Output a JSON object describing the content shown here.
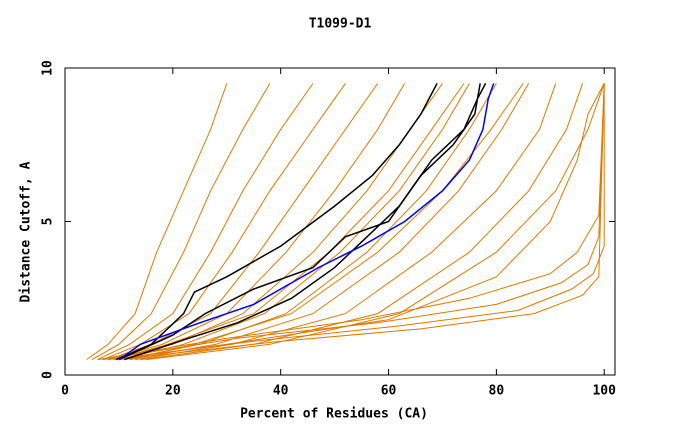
{
  "chart_data": {
    "type": "line",
    "title": "T1099-D1",
    "x_label": "Percent of Residues (CA)",
    "y_label": "Distance Cutoff, A",
    "xlim": [
      0,
      102
    ],
    "ylim": [
      0,
      10
    ],
    "xticks": [
      0,
      20,
      40,
      60,
      80,
      100
    ],
    "yticks": [
      0,
      5,
      10
    ],
    "series": [
      {
        "color": "#e07800",
        "x": [
          4,
          8,
          13,
          17,
          22,
          27,
          30
        ],
        "values": [
          0.5,
          1,
          2,
          4,
          6,
          8,
          9.5
        ]
      },
      {
        "color": "#e07800",
        "x": [
          5,
          10,
          16,
          22,
          27,
          33,
          38
        ],
        "values": [
          0.5,
          1,
          2,
          4,
          6,
          8,
          9.5
        ]
      },
      {
        "color": "#e07800",
        "x": [
          6,
          12,
          20,
          27,
          33,
          40,
          46
        ],
        "values": [
          0.5,
          1,
          2,
          4,
          6,
          8,
          9.5
        ]
      },
      {
        "color": "#e07800",
        "x": [
          7,
          14,
          23,
          31,
          38,
          46,
          52
        ],
        "values": [
          0.5,
          1,
          2,
          4,
          6,
          8,
          9.5
        ]
      },
      {
        "color": "#e07800",
        "x": [
          8,
          16,
          27,
          36,
          44,
          52,
          58
        ],
        "values": [
          0.5,
          1,
          2,
          4,
          6,
          8,
          9.5
        ]
      },
      {
        "color": "#e07800",
        "x": [
          8,
          18,
          30,
          41,
          50,
          58,
          63
        ],
        "values": [
          0.5,
          1,
          2,
          4,
          6,
          8,
          9.5
        ]
      },
      {
        "color": "#e07800",
        "x": [
          9,
          20,
          33,
          46,
          56,
          64,
          70
        ],
        "values": [
          0.5,
          1,
          2,
          4,
          6,
          8,
          9.5
        ]
      },
      {
        "color": "#e07800",
        "x": [
          10,
          22,
          37,
          51,
          62,
          70,
          75
        ],
        "values": [
          0.5,
          1,
          2,
          4,
          6,
          8,
          9.5
        ]
      },
      {
        "color": "#e07800",
        "x": [
          11,
          25,
          41,
          56,
          67,
          75,
          80
        ],
        "values": [
          0.5,
          1,
          2,
          4,
          6,
          8,
          9.5
        ]
      },
      {
        "color": "#e07800",
        "x": [
          12,
          28,
          46,
          62,
          73,
          81,
          86
        ],
        "values": [
          0.5,
          1,
          2,
          4,
          6,
          8,
          9.5
        ]
      },
      {
        "color": "#e07800",
        "x": [
          13,
          31,
          52,
          68,
          80,
          88,
          91
        ],
        "values": [
          0.5,
          1,
          2,
          4,
          6,
          8,
          9.5
        ]
      },
      {
        "color": "#e07800",
        "x": [
          14,
          35,
          58,
          75,
          86,
          93,
          96
        ],
        "values": [
          0.5,
          1,
          2,
          4,
          6,
          8,
          9.5
        ]
      },
      {
        "color": "#e07800",
        "x": [
          15,
          38,
          62,
          80,
          91,
          97,
          100
        ],
        "values": [
          0.5,
          1,
          2,
          4,
          6,
          8,
          9.5
        ]
      },
      {
        "color": "#e07800",
        "x": [
          12,
          24,
          42,
          58,
          70,
          79,
          85
        ],
        "values": [
          0.5,
          1,
          2,
          4,
          6,
          8,
          9.5
        ]
      },
      {
        "color": "#e07800",
        "x": [
          9,
          19,
          35,
          49,
          60,
          68,
          74
        ],
        "values": [
          0.5,
          1,
          2,
          4,
          6,
          8,
          9.5
        ]
      },
      {
        "color": "#e07800",
        "x": [
          6,
          30,
          55,
          75,
          90,
          95,
          99,
          100
        ],
        "values": [
          0.5,
          1.2,
          1.8,
          2.5,
          3.3,
          4,
          5.2,
          9.5
        ]
      },
      {
        "color": "#e07800",
        "x": [
          7,
          32,
          58,
          80,
          92,
          97,
          99,
          100
        ],
        "values": [
          0.5,
          1.2,
          1.7,
          2.3,
          3,
          3.6,
          4.5,
          9.5
        ]
      },
      {
        "color": "#e07800",
        "x": [
          8,
          35,
          62,
          84,
          94,
          98,
          100,
          100
        ],
        "values": [
          0.5,
          1.1,
          1.6,
          2.1,
          2.8,
          3.3,
          4.2,
          9.5
        ]
      },
      {
        "color": "#e07800",
        "x": [
          10,
          40,
          66,
          87,
          96,
          99,
          100
        ],
        "values": [
          0.5,
          1.1,
          1.5,
          2,
          2.6,
          3.2,
          9.5
        ]
      },
      {
        "color": "#e07800",
        "x": [
          9,
          30,
          60,
          80,
          90,
          95,
          97,
          100
        ],
        "values": [
          0.5,
          1,
          1.8,
          3.2,
          5,
          7,
          8.5,
          9.5
        ]
      },
      {
        "color": "#000000",
        "x": [
          9.5,
          16,
          22,
          24,
          30,
          40,
          50,
          57,
          62,
          66,
          69
        ],
        "values": [
          0.5,
          1,
          2,
          2.7,
          3.2,
          4.2,
          5.5,
          6.5,
          7.5,
          8.5,
          9.5
        ]
      },
      {
        "color": "#000000",
        "x": [
          10,
          20,
          26,
          35,
          46,
          52,
          60,
          66,
          72,
          76,
          77
        ],
        "values": [
          0.5,
          1.3,
          2,
          2.8,
          3.5,
          4.5,
          5,
          6.5,
          7.5,
          8.5,
          9.5
        ]
      },
      {
        "color": "#000000",
        "x": [
          11,
          23,
          32,
          42,
          50,
          56,
          62,
          68,
          74,
          76.5,
          78
        ],
        "values": [
          0.5,
          1.2,
          1.7,
          2.5,
          3.5,
          4.5,
          5.5,
          7,
          8,
          9,
          9.5
        ]
      },
      {
        "color": "#0000ff",
        "x": [
          10,
          14,
          25,
          35,
          40,
          47,
          55,
          63,
          70,
          75,
          77.5,
          78.5,
          79.5
        ],
        "values": [
          0.5,
          1,
          1.7,
          2.3,
          2.8,
          3.5,
          4.2,
          5,
          6,
          7,
          8,
          9,
          9.5
        ]
      }
    ]
  }
}
